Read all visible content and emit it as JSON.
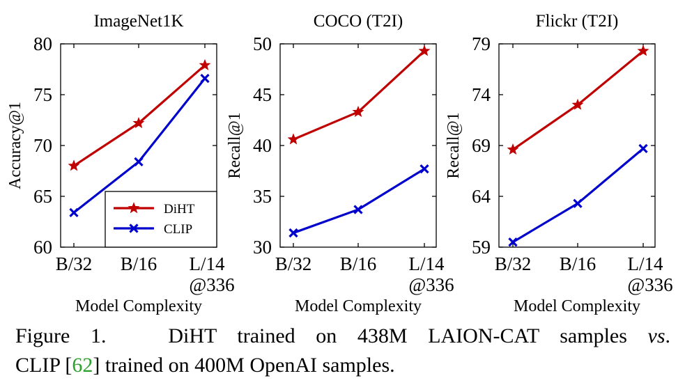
{
  "chart_data": [
    {
      "type": "line",
      "title": "ImageNet1K",
      "xlabel": "Model Complexity",
      "ylabel": "Accuracy@1",
      "categories": [
        [
          "B/32"
        ],
        [
          "B/16"
        ],
        [
          "L/14",
          "@336"
        ]
      ],
      "ylim": [
        60,
        80
      ],
      "yticks": [
        60,
        65,
        70,
        75,
        80
      ],
      "grid": false,
      "legend": "bottom-right",
      "series": [
        {
          "name": "DiHT",
          "color": "#c00000",
          "marker": "star",
          "values": [
            68.0,
            72.2,
            77.9
          ]
        },
        {
          "name": "CLIP",
          "color": "#0000cc",
          "marker": "x",
          "values": [
            63.4,
            68.4,
            76.6
          ]
        }
      ]
    },
    {
      "type": "line",
      "title": "COCO (T2I)",
      "xlabel": "Model Complexity",
      "ylabel": "Recall@1",
      "categories": [
        [
          "B/32"
        ],
        [
          "B/16"
        ],
        [
          "L/14",
          "@336"
        ]
      ],
      "ylim": [
        30,
        50
      ],
      "yticks": [
        30,
        35,
        40,
        45,
        50
      ],
      "grid": false,
      "series": [
        {
          "name": "DiHT",
          "color": "#c00000",
          "marker": "star",
          "values": [
            40.6,
            43.3,
            49.3
          ]
        },
        {
          "name": "CLIP",
          "color": "#0000cc",
          "marker": "x",
          "values": [
            31.4,
            33.7,
            37.7
          ]
        }
      ]
    },
    {
      "type": "line",
      "title": "Flickr (T2I)",
      "xlabel": "Model Complexity",
      "ylabel": "Recall@1",
      "categories": [
        [
          "B/32"
        ],
        [
          "B/16"
        ],
        [
          "L/14",
          "@336"
        ]
      ],
      "ylim": [
        59,
        79
      ],
      "yticks": [
        59,
        64,
        69,
        74,
        79
      ],
      "grid": false,
      "series": [
        {
          "name": "DiHT",
          "color": "#c00000",
          "marker": "star",
          "values": [
            68.6,
            73.0,
            78.3
          ]
        },
        {
          "name": "CLIP",
          "color": "#0000cc",
          "marker": "x",
          "values": [
            59.5,
            63.3,
            68.7
          ]
        }
      ]
    }
  ],
  "caption": {
    "label": "Figure 1.",
    "line1_rest": "DiHT trained on 438M LAION-CAT samples",
    "vs": "vs",
    "period": ".",
    "line2_start": "CLIP [",
    "ref": "62",
    "line2_end": "] trained on 400M OpenAI samples."
  }
}
